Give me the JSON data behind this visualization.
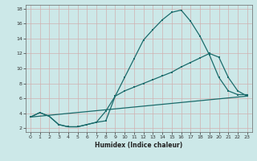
{
  "xlabel": "Humidex (Indice chaleur)",
  "bg_color": "#cce8e8",
  "grid_color": "#b8d8d8",
  "line_color": "#1a6b6b",
  "xlim": [
    -0.5,
    23.5
  ],
  "ylim": [
    1.5,
    18.5
  ],
  "yticks": [
    2,
    4,
    6,
    8,
    10,
    12,
    14,
    16,
    18
  ],
  "xticks": [
    0,
    1,
    2,
    3,
    4,
    5,
    6,
    7,
    8,
    9,
    10,
    11,
    12,
    13,
    14,
    15,
    16,
    17,
    18,
    19,
    20,
    21,
    22,
    23
  ],
  "line1_x": [
    0,
    1,
    2,
    3,
    4,
    5,
    6,
    7,
    8,
    9,
    10,
    11,
    12,
    13,
    14,
    15,
    16,
    17,
    18,
    19,
    20,
    21,
    22,
    23
  ],
  "line1_y": [
    3.5,
    4.1,
    3.6,
    2.5,
    2.2,
    2.2,
    2.5,
    2.8,
    3.0,
    6.3,
    8.8,
    11.3,
    13.8,
    15.2,
    16.5,
    17.5,
    17.8,
    16.3,
    14.3,
    11.8,
    8.8,
    7.0,
    6.5,
    6.5
  ],
  "line2_x": [
    0,
    23
  ],
  "line2_y": [
    3.5,
    6.3
  ],
  "line3_x": [
    0,
    1,
    2,
    3,
    4,
    5,
    6,
    7,
    8,
    9,
    10,
    11,
    12,
    13,
    14,
    15,
    16,
    17,
    18,
    19,
    20,
    21,
    22,
    23
  ],
  "line3_y": [
    3.5,
    4.1,
    3.6,
    2.5,
    2.2,
    2.2,
    2.5,
    2.8,
    4.3,
    6.3,
    7.0,
    7.5,
    8.0,
    8.5,
    9.0,
    9.5,
    10.2,
    10.8,
    11.4,
    12.0,
    11.5,
    8.8,
    7.0,
    6.3
  ]
}
